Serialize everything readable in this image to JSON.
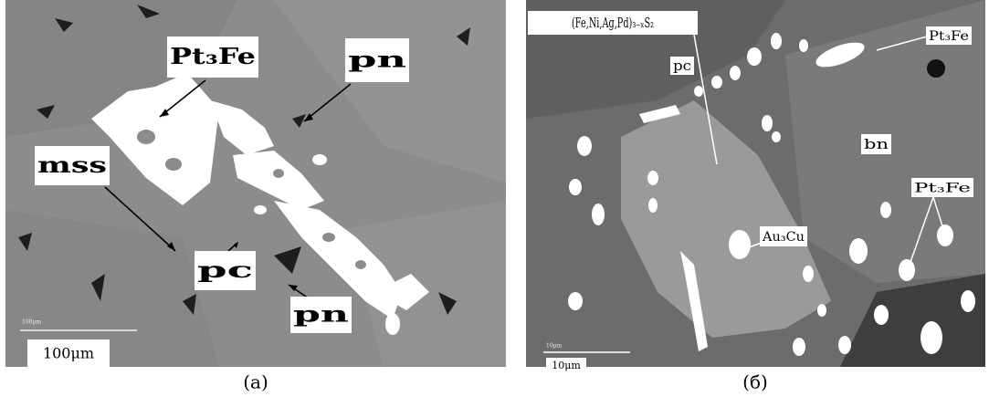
{
  "panels": [
    {
      "caption": "(a)",
      "labels": [
        "Pt₃Fe",
        "pn",
        "mss",
        "pc",
        "pn"
      ],
      "scale_bar": {
        "small_label": "100μm",
        "label": "100μm"
      }
    },
    {
      "caption": "(б)",
      "labels": [
        "(Fe,Ni,Ag,Pd)₃₋ₓS₂",
        "pc",
        "Pt₃Fe",
        "bn",
        "Pt₃Fe",
        "Au₃Cu"
      ],
      "scale_bar": {
        "small_label": "10μm",
        "label": "10μm"
      }
    }
  ]
}
